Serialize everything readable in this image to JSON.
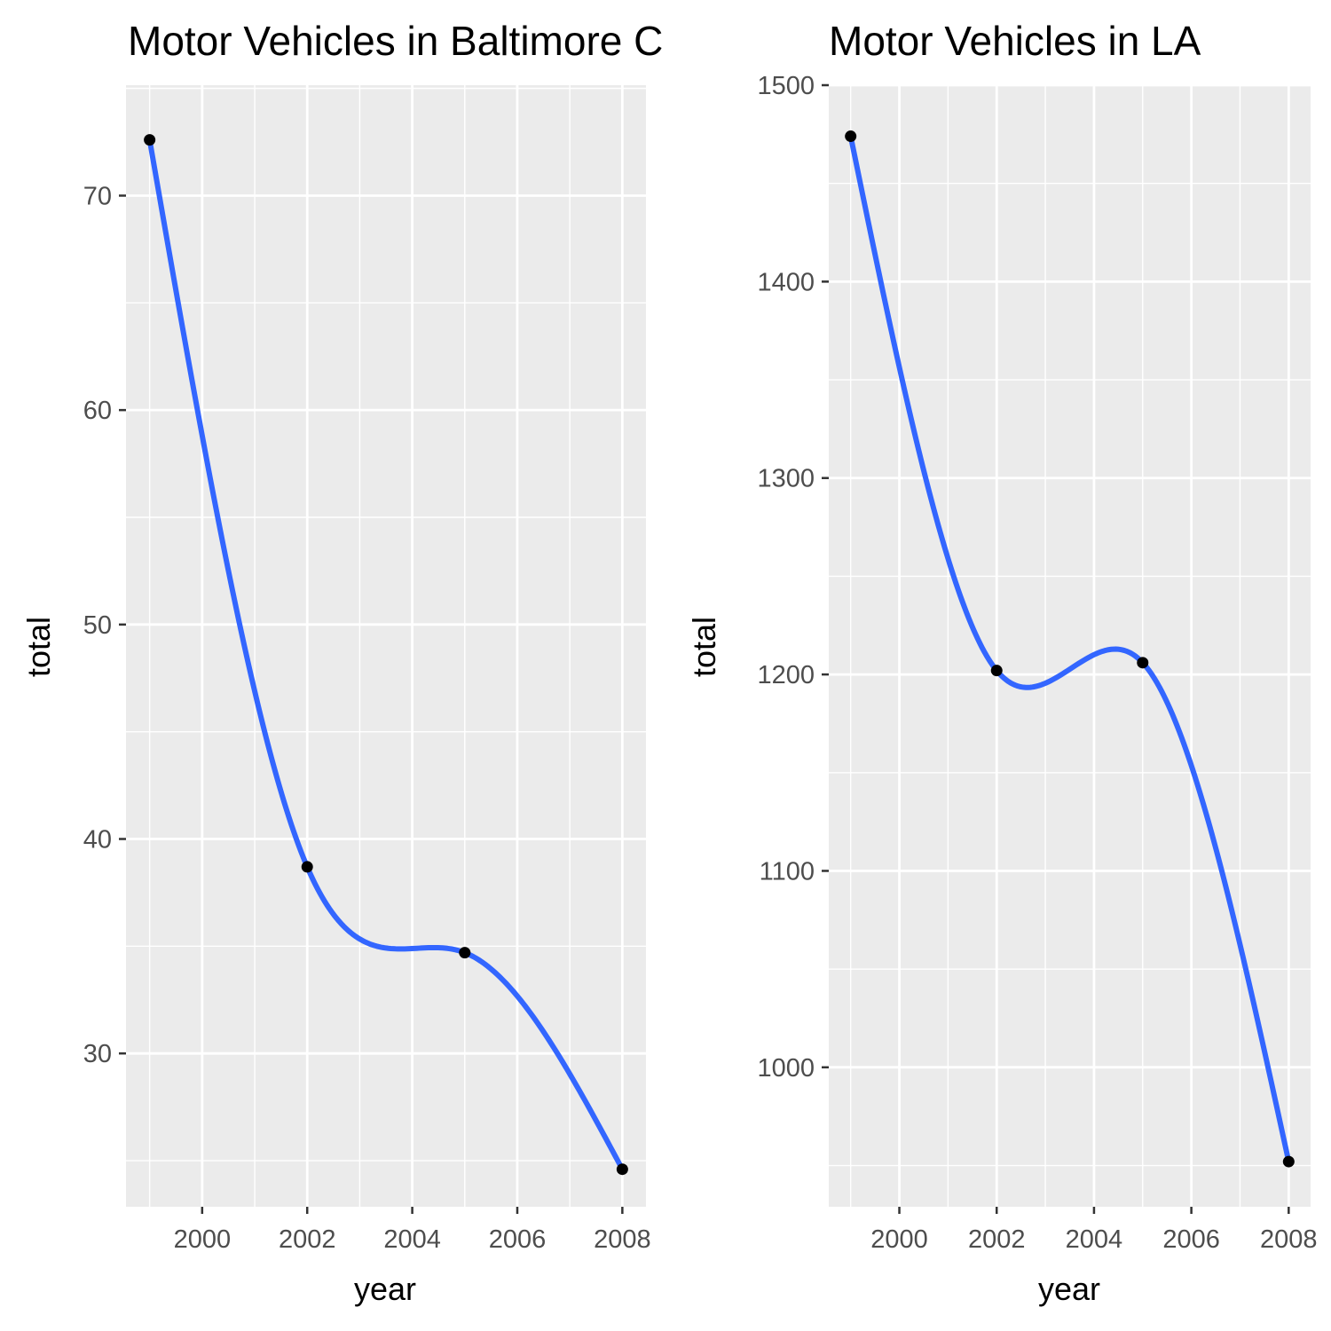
{
  "colors": {
    "panel_background": "#EBEBEB",
    "grid_line": "#FFFFFF",
    "smooth_line": "#3366FF",
    "point": "#000000",
    "tick_text": "#4D4D4D",
    "tick_mark": "#333333"
  },
  "chart_data": [
    {
      "type": "line",
      "title": "Motor Vehicles in Baltimore City",
      "xlabel": "year",
      "ylabel": "total",
      "grid": true,
      "smooth": true,
      "xlim": [
        1998.55,
        2008.45
      ],
      "ylim": [
        22.85,
        75.15
      ],
      "x_ticks": [
        2000,
        2002,
        2004,
        2006,
        2008
      ],
      "y_ticks": [
        30,
        40,
        50,
        60,
        70
      ],
      "x_tick_labels": [
        "2000",
        "2002",
        "2004",
        "2006",
        "2008"
      ],
      "y_tick_labels": [
        "30",
        "40",
        "50",
        "60",
        "70"
      ],
      "series": [
        {
          "x": [
            1999,
            2002,
            2005,
            2008
          ],
          "y": [
            72.6,
            38.7,
            34.7,
            24.6
          ]
        }
      ]
    },
    {
      "type": "line",
      "title": "Motor Vehicles in LA",
      "xlabel": "year",
      "ylabel": "total",
      "grid": true,
      "smooth": true,
      "xlim": [
        1998.55,
        2008.45
      ],
      "ylim": [
        929,
        1500
      ],
      "x_ticks": [
        2000,
        2002,
        2004,
        2006,
        2008
      ],
      "y_ticks": [
        1000,
        1100,
        1200,
        1300,
        1400,
        1500
      ],
      "x_tick_labels": [
        "2000",
        "2002",
        "2004",
        "2006",
        "2008"
      ],
      "y_tick_labels": [
        "1000",
        "1100",
        "1200",
        "1300",
        "1400",
        "1500"
      ],
      "series": [
        {
          "x": [
            1999,
            2002,
            2005,
            2008
          ],
          "y": [
            1474,
            1202,
            1206,
            952
          ]
        }
      ]
    }
  ]
}
